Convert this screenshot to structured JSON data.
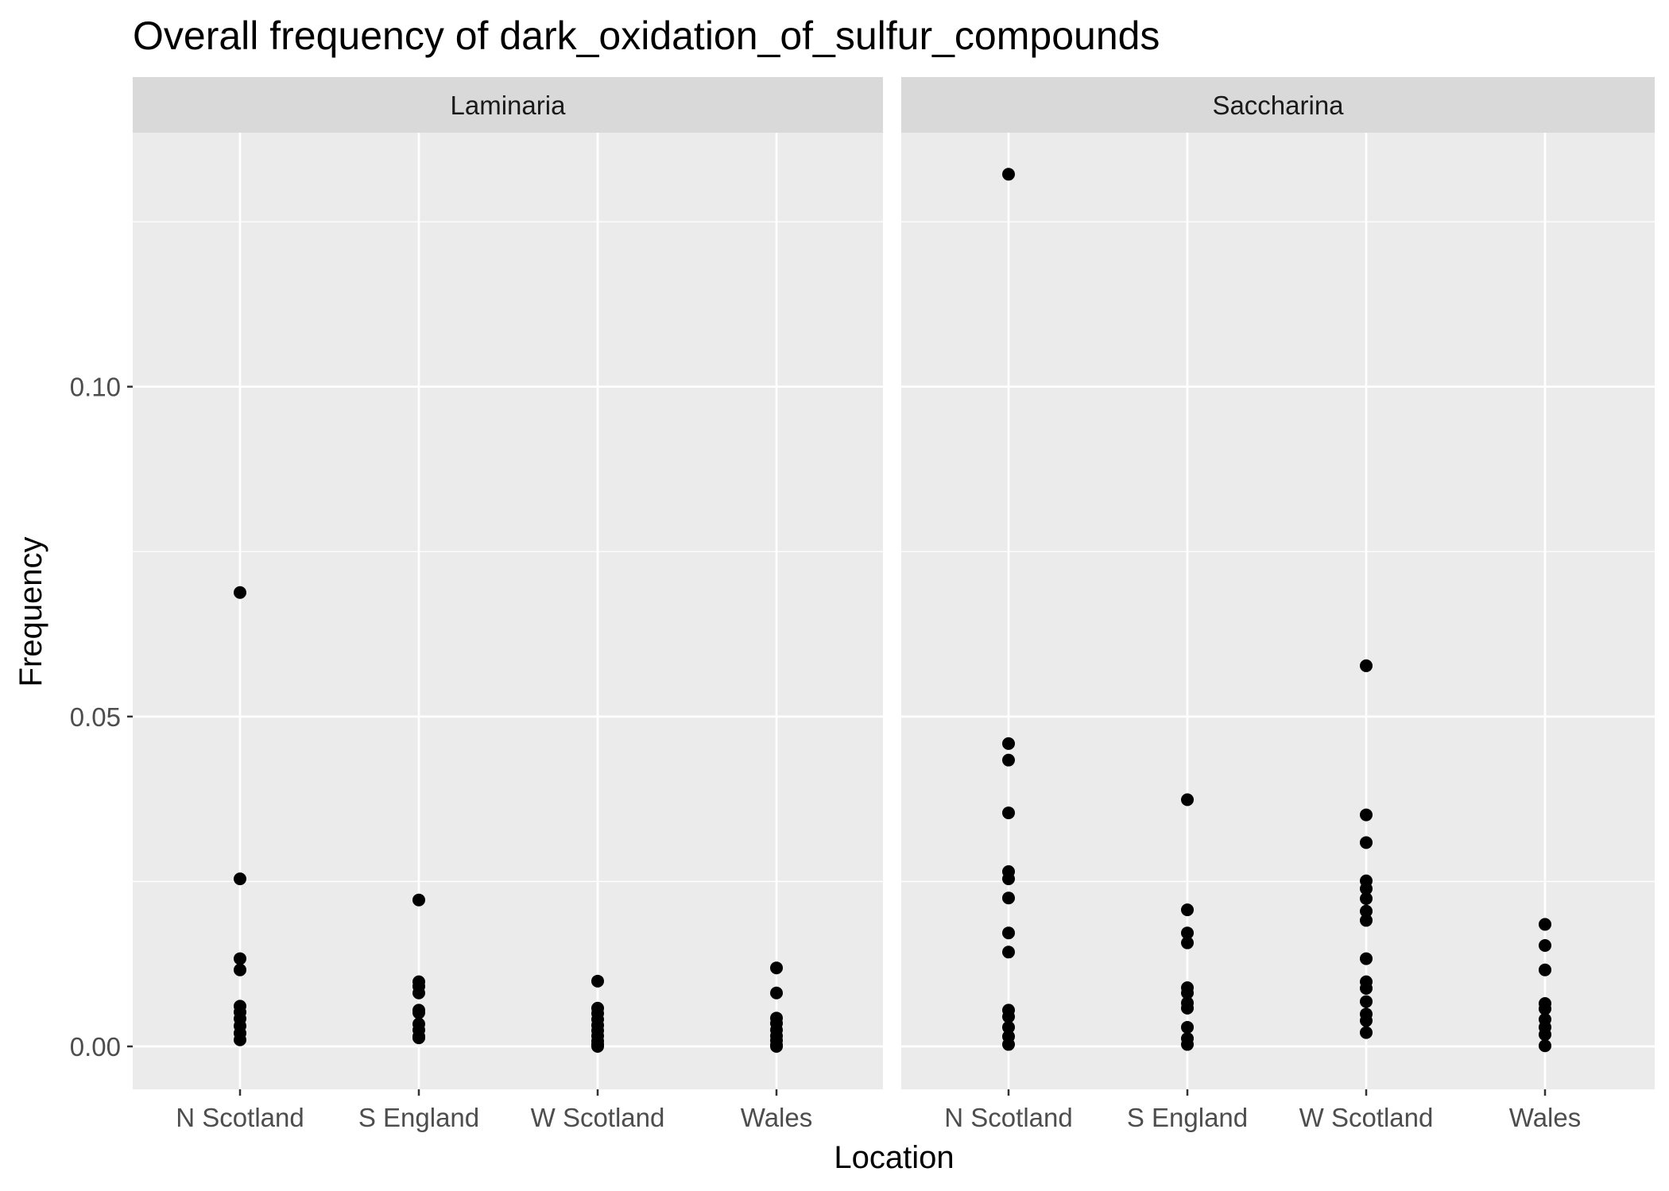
{
  "chart_data": {
    "type": "scatter",
    "title": "Overall frequency of dark_oxidation_of_sulfur_compounds",
    "xlabel": "Location",
    "ylabel": "Frequency",
    "categories": [
      "N Scotland",
      "S England",
      "W Scotland",
      "Wales"
    ],
    "y_ticks": [
      0.0,
      0.05,
      0.1
    ],
    "y_tick_labels": [
      "0.00",
      "0.05",
      "0.10"
    ],
    "ylim": [
      -0.0065,
      0.1385
    ],
    "grid": true,
    "colors": {
      "panel_background": "#ebebeb",
      "strip_background": "#d9d9d9",
      "grid": "#ffffff",
      "points": "#000000"
    },
    "panels": [
      {
        "name": "Laminaria",
        "points": {
          "N Scotland": [
            0.0688,
            0.0254,
            0.0133,
            0.0116,
            0.0061,
            0.0052,
            0.0042,
            0.0031,
            0.002,
            0.001
          ],
          "S England": [
            0.0222,
            0.0098,
            0.0091,
            0.0081,
            0.0055,
            0.0051,
            0.0034,
            0.0025,
            0.0015,
            0.0013
          ],
          "W Scotland": [
            0.0099,
            0.0058,
            0.005,
            0.0041,
            0.0032,
            0.0024,
            0.0016,
            0.0008,
            0.0003,
            0.0
          ],
          "Wales": [
            0.0119,
            0.0081,
            0.0043,
            0.0035,
            0.0025,
            0.0016,
            0.0009,
            0.0002,
            0.0
          ]
        }
      },
      {
        "name": "Saccharina",
        "points": {
          "N Scotland": [
            0.1322,
            0.0459,
            0.0434,
            0.0354,
            0.0265,
            0.0254,
            0.0225,
            0.0172,
            0.0143,
            0.0055,
            0.0045,
            0.0029,
            0.0015,
            0.0003
          ],
          "S England": [
            0.0374,
            0.0207,
            0.0172,
            0.0157,
            0.0089,
            0.0081,
            0.0066,
            0.0058,
            0.0029,
            0.0012,
            0.0003
          ],
          "W Scotland": [
            0.0577,
            0.0351,
            0.0309,
            0.0251,
            0.0239,
            0.0224,
            0.0205,
            0.0191,
            0.0133,
            0.0098,
            0.0088,
            0.0068,
            0.0049,
            0.0039,
            0.0021
          ],
          "Wales": [
            0.0185,
            0.0153,
            0.0116,
            0.0065,
            0.0057,
            0.0041,
            0.0029,
            0.0018,
            0.0001
          ]
        }
      }
    ]
  }
}
